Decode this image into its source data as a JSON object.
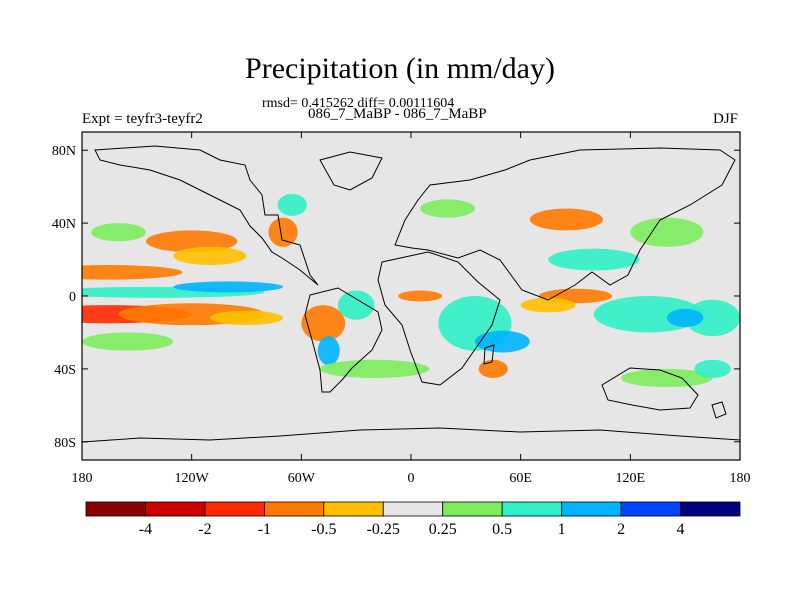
{
  "title": "Precipitation (in mm/day)",
  "subtitle": "rmsd= 0.415262 diff= 0.00111604",
  "left_label": "Expt = teyfr3-teyfr2",
  "center_label": "086_7_MaBP - 086_7_MaBP",
  "right_label": "DJF",
  "chart_data": {
    "type": "heatmap",
    "title": "Precipitation (in mm/day)",
    "subtitle": "rmsd= 0.415262 diff= 0.00111604",
    "experiment": "Expt = teyfr3-teyfr2",
    "period": "086_7_MaBP - 086_7_MaBP",
    "season": "DJF",
    "x_ticks": [
      "180",
      "120W",
      "60W",
      "0",
      "60E",
      "120E",
      "180"
    ],
    "y_ticks": [
      "80N",
      "40N",
      "0",
      "40S",
      "80S"
    ],
    "xlim": [
      -180,
      180
    ],
    "ylim": [
      -90,
      90
    ],
    "colorbar": {
      "labels": [
        "-4",
        "-2",
        "-1",
        "-0.5",
        "-0.25",
        "0.25",
        "0.5",
        "1",
        "2",
        "4"
      ],
      "colors": [
        "#8b0000",
        "#cc0000",
        "#ff2a00",
        "#ff7a00",
        "#ffc000",
        "#e6e6e6",
        "#7cec5c",
        "#30f0c8",
        "#00b4ff",
        "#0044ff",
        "#000080"
      ]
    },
    "regions": [
      {
        "lon": -165,
        "lat": -10,
        "dlon": 45,
        "dlat": 5,
        "level": 2
      },
      {
        "lon": -120,
        "lat": -10,
        "dlon": 40,
        "dlat": 6,
        "level": 3
      },
      {
        "lon": -90,
        "lat": -12,
        "dlon": 20,
        "dlat": 4,
        "level": 4
      },
      {
        "lon": -165,
        "lat": 13,
        "dlon": 40,
        "dlat": 4,
        "level": 3
      },
      {
        "lon": -120,
        "lat": 30,
        "dlon": 25,
        "dlat": 6,
        "level": 3
      },
      {
        "lon": -110,
        "lat": 22,
        "dlon": 20,
        "dlat": 5,
        "level": 4
      },
      {
        "lon": -140,
        "lat": 2,
        "dlon": 60,
        "dlat": 3,
        "level": 7
      },
      {
        "lon": -100,
        "lat": 5,
        "dlon": 30,
        "dlat": 3,
        "level": 8
      },
      {
        "lon": -160,
        "lat": 35,
        "dlon": 15,
        "dlat": 5,
        "level": 6
      },
      {
        "lon": -65,
        "lat": 50,
        "dlon": 8,
        "dlat": 6,
        "level": 7
      },
      {
        "lon": -70,
        "lat": 35,
        "dlon": 8,
        "dlat": 8,
        "level": 3
      },
      {
        "lon": -48,
        "lat": -15,
        "dlon": 12,
        "dlat": 10,
        "level": 3
      },
      {
        "lon": -45,
        "lat": -30,
        "dlon": 6,
        "dlat": 8,
        "level": 8
      },
      {
        "lon": -30,
        "lat": -5,
        "dlon": 10,
        "dlat": 8,
        "level": 7
      },
      {
        "lon": 5,
        "lat": 0,
        "dlon": 12,
        "dlat": 3,
        "level": 3
      },
      {
        "lon": 35,
        "lat": -15,
        "dlon": 20,
        "dlat": 15,
        "level": 7
      },
      {
        "lon": 50,
        "lat": -25,
        "dlon": 15,
        "dlat": 6,
        "level": 8
      },
      {
        "lon": 45,
        "lat": -40,
        "dlon": 8,
        "dlat": 5,
        "level": 3
      },
      {
        "lon": 90,
        "lat": 0,
        "dlon": 20,
        "dlat": 4,
        "level": 3
      },
      {
        "lon": 75,
        "lat": -5,
        "dlon": 15,
        "dlat": 4,
        "level": 4
      },
      {
        "lon": 130,
        "lat": -10,
        "dlon": 30,
        "dlat": 10,
        "level": 7
      },
      {
        "lon": 165,
        "lat": -12,
        "dlon": 15,
        "dlat": 10,
        "level": 7
      },
      {
        "lon": 150,
        "lat": -12,
        "dlon": 10,
        "dlat": 5,
        "level": 8
      },
      {
        "lon": 85,
        "lat": 42,
        "dlon": 20,
        "dlat": 6,
        "level": 3
      },
      {
        "lon": 140,
        "lat": 35,
        "dlon": 20,
        "dlat": 8,
        "level": 6
      },
      {
        "lon": 20,
        "lat": 48,
        "dlon": 15,
        "dlat": 5,
        "level": 6
      },
      {
        "lon": 100,
        "lat": 20,
        "dlon": 25,
        "dlat": 6,
        "level": 7
      },
      {
        "lon": -20,
        "lat": -40,
        "dlon": 30,
        "dlat": 5,
        "level": 6
      },
      {
        "lon": 140,
        "lat": -45,
        "dlon": 25,
        "dlat": 5,
        "level": 6
      },
      {
        "lon": 165,
        "lat": -40,
        "dlon": 10,
        "dlat": 5,
        "level": 7
      },
      {
        "lon": -155,
        "lat": -25,
        "dlon": 25,
        "dlat": 5,
        "level": 6
      }
    ]
  }
}
